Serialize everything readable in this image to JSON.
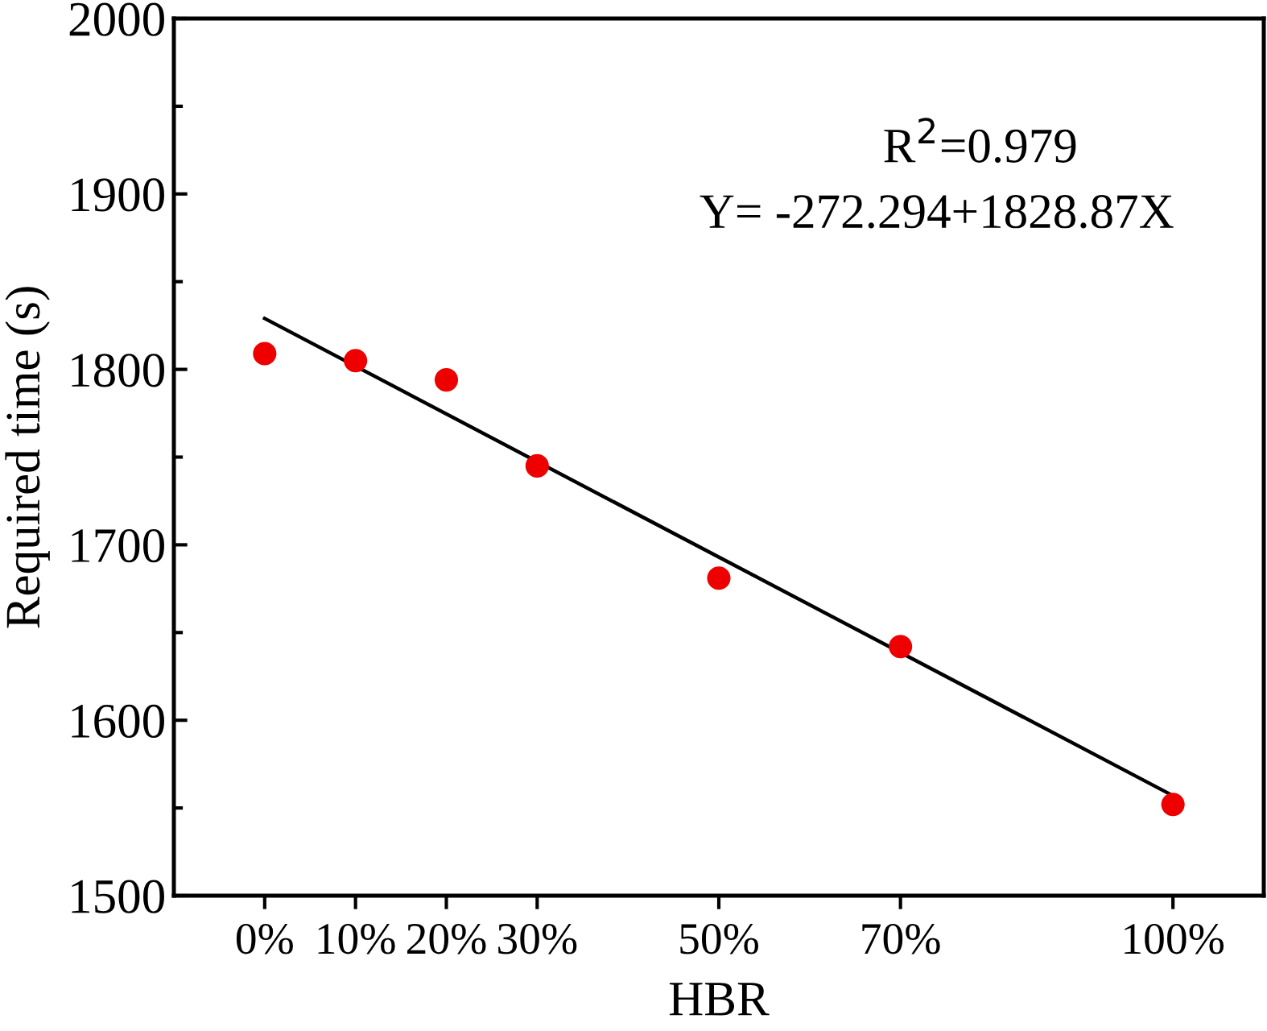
{
  "chart_data": {
    "type": "scatter",
    "xlabel": "HBR",
    "ylabel": "Required time (s)",
    "xlim": [
      -0.1,
      1.1
    ],
    "xticks": [
      {
        "value": 0,
        "label": "0%"
      },
      {
        "value": 0.1,
        "label": "10%"
      },
      {
        "value": 0.2,
        "label": "20%"
      },
      {
        "value": 0.3,
        "label": "30%"
      },
      {
        "value": 0.5,
        "label": "50%"
      },
      {
        "value": 0.7,
        "label": "70%"
      },
      {
        "value": 1.0,
        "label": "100%"
      }
    ],
    "ylim": [
      1500,
      2000
    ],
    "yticks": [
      1500,
      1600,
      1700,
      1800,
      1900,
      2000
    ],
    "series": [
      {
        "color": "#ee0000",
        "x": [
          0,
          0.1,
          0.2,
          0.3,
          0.5,
          0.7,
          1.0
        ],
        "values": [
          1809,
          1805,
          1794,
          1745,
          1681,
          1642,
          1552
        ],
        "marker": "circle"
      },
      {
        "type": "line",
        "color": "#000000",
        "x": [
          0,
          1.0
        ],
        "values": [
          1829,
          1557
        ],
        "marker": "none",
        "line_style": "solid"
      }
    ],
    "annotations": [
      "R$^{2}$=0.979",
      "Y= -272.294+1828.87X"
    ],
    "grid": false,
    "legend": false
  }
}
